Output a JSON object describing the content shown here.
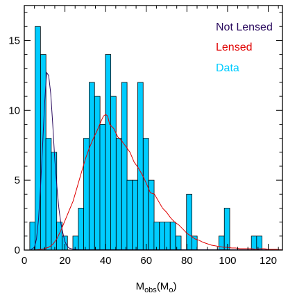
{
  "chart_data": {
    "type": "bar",
    "xlim": [
      0,
      127
    ],
    "ylim": [
      0,
      17.5
    ],
    "xticks": [
      0,
      20,
      40,
      60,
      80,
      100,
      120
    ],
    "yticks": [
      0,
      5,
      10,
      15
    ],
    "xlabel": {
      "main": "M",
      "sub_obs": "obs",
      "paren": "(M",
      "sub_o": "o",
      "close": ")"
    },
    "legend": {
      "placement": "top-right",
      "entries": [
        {
          "name": "Not Lensed",
          "color": "#2a0a5e"
        },
        {
          "name": "Lensed",
          "color": "#e00000"
        },
        {
          "name": "Data",
          "color": "#00ccff"
        }
      ]
    },
    "histogram": {
      "name": "Data",
      "color": "#00ccff",
      "bin_width": 2.66,
      "bin_starts": [
        2.7,
        5.3,
        8.0,
        10.6,
        13.3,
        15.9,
        18.6,
        21.3,
        23.9,
        26.6,
        29.2,
        31.9,
        34.6,
        37.2,
        39.9,
        42.5,
        45.2,
        47.9,
        50.5,
        53.2,
        55.8,
        58.5,
        61.2,
        63.8,
        66.5,
        69.1,
        71.8,
        74.5,
        77.1,
        79.8,
        82.4,
        85.1,
        87.7,
        90.4,
        93.1,
        95.7,
        98.4,
        101.0,
        103.7,
        106.4,
        109.0,
        111.7,
        114.3,
        117.0,
        119.6
      ],
      "counts": [
        2,
        16,
        14,
        8,
        7,
        2,
        1,
        0,
        1,
        3,
        8,
        12,
        11,
        9,
        14,
        11,
        8,
        12,
        5,
        5,
        12,
        8,
        5,
        2,
        2,
        2,
        2,
        1,
        0,
        4,
        1,
        0,
        0,
        0,
        0,
        1,
        3,
        0,
        0,
        0,
        0,
        1,
        1,
        0,
        0
      ]
    },
    "series": [
      {
        "name": "Not Lensed",
        "color": "#2a0a5e",
        "x": [
          3,
          5,
          6,
          7,
          8,
          9,
          10,
          11,
          12,
          13,
          14,
          15,
          16,
          17,
          18,
          19,
          20,
          21,
          22,
          24,
          26,
          28,
          30,
          35,
          40,
          60,
          127
        ],
        "y": [
          0,
          0.2,
          0.8,
          2.2,
          4.5,
          7.5,
          10.5,
          12.7,
          12.5,
          11.2,
          9.0,
          6.5,
          4.6,
          3.0,
          1.9,
          1.2,
          0.6,
          0.3,
          0.15,
          0.06,
          0.03,
          0.02,
          0.02,
          0.02,
          0.02,
          0.02,
          0.02
        ]
      },
      {
        "name": "Lensed",
        "color": "#e00000",
        "x": [
          5,
          8,
          10,
          12,
          14,
          16,
          18,
          20,
          22,
          24,
          26,
          28,
          30,
          32,
          34,
          36,
          38,
          39,
          40,
          41,
          42,
          44,
          46,
          48,
          50,
          52,
          54,
          56,
          58,
          60,
          62,
          64,
          66,
          68,
          70,
          72,
          74,
          76,
          78,
          80,
          82,
          84,
          86,
          88,
          90,
          92,
          94,
          96,
          98,
          100,
          102,
          104,
          106,
          108,
          110,
          112,
          114,
          116,
          118,
          120,
          122,
          124,
          127
        ],
        "y": [
          0,
          0.05,
          0.1,
          0.2,
          0.4,
          0.8,
          1.4,
          2.1,
          2.8,
          3.5,
          4.5,
          5.5,
          6.5,
          7.3,
          8.0,
          8.6,
          9.3,
          9.6,
          9.7,
          9.6,
          9.0,
          8.7,
          8.1,
          7.8,
          7.4,
          7.0,
          6.3,
          5.9,
          5.4,
          4.8,
          4.1,
          4.0,
          3.5,
          3.0,
          2.7,
          2.3,
          2.0,
          1.8,
          1.5,
          1.2,
          1.0,
          0.8,
          0.7,
          0.55,
          0.45,
          0.35,
          0.3,
          0.25,
          0.2,
          0.2,
          0.15,
          0.15,
          0.1,
          0.1,
          0.1,
          0.1,
          0.05,
          0.1,
          0.1,
          0.05,
          0.05,
          0.05,
          0
        ]
      }
    ]
  }
}
